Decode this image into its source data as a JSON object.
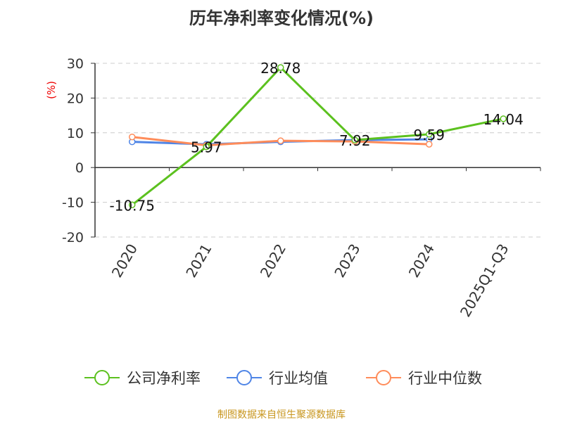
{
  "chart_data": {
    "type": "line",
    "title": "历年净利率变化情况(%)",
    "ylabel": "(%)",
    "categories": [
      "2020",
      "2021",
      "2022",
      "2023",
      "2024",
      "2025Q1-Q3"
    ],
    "ylim": [
      -20,
      30
    ],
    "yticks": [
      -20,
      -10,
      0,
      10,
      20,
      30
    ],
    "grid": true,
    "legend_position": "bottom",
    "series": [
      {
        "name": "公司净利率",
        "color": "#5cc11f",
        "values": [
          -10.75,
          5.97,
          28.78,
          7.92,
          9.59,
          14.04
        ],
        "labels": [
          "-10.75",
          "5.97",
          "28.78",
          "7.92",
          "9.59",
          "14.04"
        ]
      },
      {
        "name": "行业均值",
        "color": "#4f85e6",
        "values": [
          7.4,
          6.7,
          7.4,
          7.9,
          8.1,
          null
        ]
      },
      {
        "name": "行业中位数",
        "color": "#ff8c5a",
        "values": [
          8.8,
          6.4,
          7.7,
          7.5,
          6.7,
          null
        ]
      }
    ]
  },
  "footer": "制图数据来自恒生聚源数据库"
}
